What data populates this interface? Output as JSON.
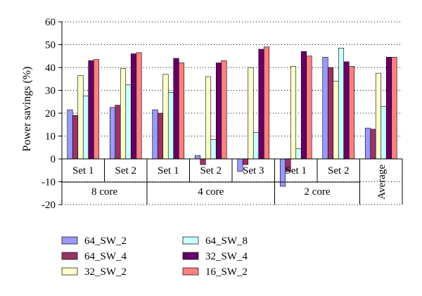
{
  "chart_data": {
    "type": "bar",
    "ylabel": "Power savings (%)",
    "xlabel": "",
    "ylim": [
      -20,
      60
    ],
    "yticks": [
      -20,
      -10,
      0,
      10,
      20,
      30,
      40,
      50,
      60
    ],
    "grid": "horizontal dotted",
    "legend_position": "bottom",
    "categories": [
      "Set 1",
      "Set 2",
      "Set 1",
      "Set 2",
      "Set 3",
      "Set 1",
      "Set 2",
      "Average"
    ],
    "groups": [
      {
        "label": "8 core",
        "span": 2
      },
      {
        "label": "4 core",
        "span": 3
      },
      {
        "label": "2 core",
        "span": 2
      },
      {
        "label": "",
        "span": 1
      }
    ],
    "series": [
      {
        "name": "64_SW_2",
        "color": "#9999ff",
        "values": [
          21.5,
          22.5,
          21.5,
          1.5,
          -5.5,
          -12,
          44.5,
          13.5
        ]
      },
      {
        "name": "64_SW_4",
        "color": "#993366",
        "values": [
          19,
          23.5,
          20,
          -2.5,
          -2.5,
          -5.5,
          40,
          13
        ]
      },
      {
        "name": "32_SW_2",
        "color": "#ffffcc",
        "values": [
          36.5,
          39.5,
          37,
          36,
          40,
          40.5,
          34,
          37.5
        ]
      },
      {
        "name": "64_SW_8",
        "color": "#ccffff",
        "values": [
          27.5,
          32.5,
          29,
          8.5,
          11.5,
          4.5,
          48.5,
          23
        ]
      },
      {
        "name": "32_SW_4",
        "color": "#660066",
        "values": [
          43,
          46,
          44,
          42,
          48,
          47,
          42.5,
          44.5
        ]
      },
      {
        "name": "16_SW_2",
        "color": "#ff8080",
        "values": [
          43.5,
          46.5,
          42,
          43,
          49,
          45,
          40.5,
          44.5
        ]
      }
    ]
  }
}
